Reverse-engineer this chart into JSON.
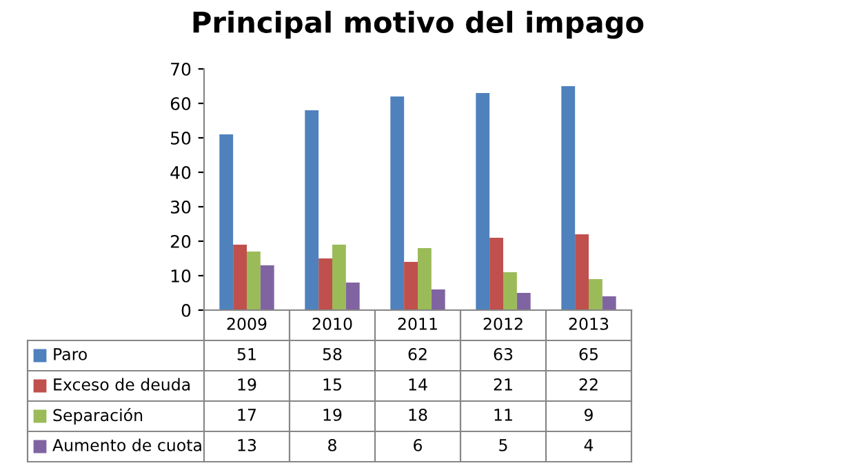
{
  "chart_data": {
    "type": "bar",
    "title": "Principal motivo del impago",
    "categories": [
      "2009",
      "2010",
      "2011",
      "2012",
      "2013"
    ],
    "series": [
      {
        "name": "Paro",
        "color": "#4f81bd",
        "values": [
          51,
          58,
          62,
          63,
          65
        ]
      },
      {
        "name": "Exceso de deuda",
        "color": "#c0504d",
        "values": [
          19,
          15,
          14,
          21,
          22
        ]
      },
      {
        "name": "Separación",
        "color": "#9bbb59",
        "values": [
          17,
          19,
          18,
          11,
          9
        ]
      },
      {
        "name": "Aumento de cuota",
        "color": "#8064a2",
        "values": [
          13,
          8,
          6,
          5,
          4
        ]
      }
    ],
    "ylim": [
      0,
      70
    ],
    "yticks": [
      0,
      10,
      20,
      30,
      40,
      50,
      60,
      70
    ],
    "grid": false,
    "legend": "bottom",
    "data_labels": true
  }
}
